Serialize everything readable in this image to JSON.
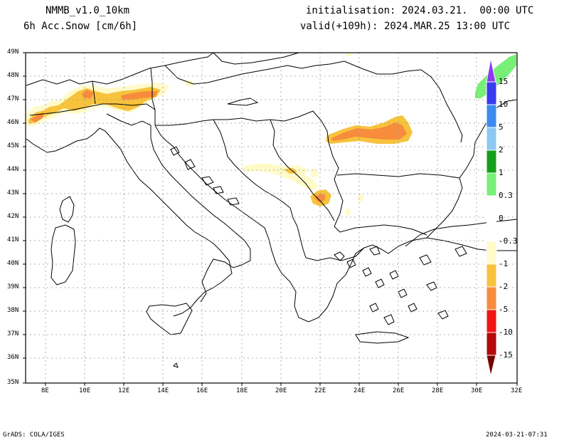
{
  "header": {
    "model": "NMMB_v1.0_10km",
    "field": "6h Acc.Snow [cm/6h]",
    "init": "initialisation: 2024.03.21.  00:00 UTC",
    "valid": "valid(+109h): 2024.MAR.25 13:00 UTC"
  },
  "axes": {
    "lat_labels": [
      "49N",
      "48N",
      "47N",
      "46N",
      "45N",
      "44N",
      "43N",
      "42N",
      "41N",
      "40N",
      "39N",
      "38N",
      "37N",
      "36N",
      "35N"
    ],
    "lon_labels": [
      "8E",
      "10E",
      "12E",
      "14E",
      "16E",
      "18E",
      "20E",
      "22E",
      "24E",
      "26E",
      "28E",
      "30E",
      "32E"
    ]
  },
  "colorbar": {
    "labels": [
      "15",
      "10",
      "5",
      "2",
      "1",
      "0.3",
      "0",
      "-0.3",
      "-1",
      "-2",
      "-5",
      "-10",
      "-15"
    ],
    "colors": {
      "violet": "#8b3cf0",
      "blue": "#3a3af0",
      "mid_blue": "#3c8cf0",
      "light_blue": "#8cc8f0",
      "dark_green": "#16a01a",
      "light_green": "#78f078",
      "white": "#ffffff",
      "cream": "#fffac8",
      "yellow_orange": "#f7c23c",
      "orange": "#f78c3c",
      "red": "#f01414",
      "dark_red": "#b40a0a",
      "maroon": "#780000"
    }
  },
  "footer": {
    "left": "GrADS: COLA/IGES",
    "right": "2024-03-21-07:31"
  }
}
